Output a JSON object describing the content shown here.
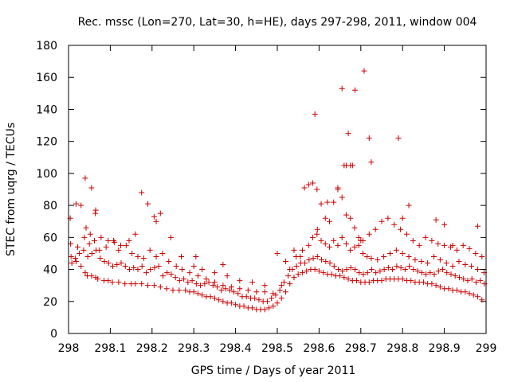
{
  "chart_data": {
    "type": "scatter",
    "title": "Rec. mssc (Lon=270, Lat=30, h=HE), days 297-298, 2011, window 004",
    "xlabel": "GPS time / Days of year 2011",
    "ylabel": "STEC from uqrg / TECUs",
    "xlim": [
      298,
      299
    ],
    "ylim": [
      0,
      180
    ],
    "x_ticks": [
      298,
      298.1,
      298.2,
      298.3,
      298.4,
      298.5,
      298.6,
      298.7,
      298.8,
      298.9,
      299
    ],
    "x_tick_labels": [
      "298",
      "298.1",
      "298.2",
      "298.3",
      "298.4",
      "298.5",
      "298.6",
      "298.7",
      "298.8",
      "298.9",
      "299"
    ],
    "y_ticks": [
      0,
      20,
      40,
      60,
      80,
      100,
      120,
      140,
      160,
      180
    ],
    "y_tick_labels": [
      "0",
      "20",
      "40",
      "60",
      "80",
      "100",
      "120",
      "140",
      "160",
      "180"
    ],
    "grid": false,
    "legend": "none",
    "marker": "plus",
    "color": "#cc0000",
    "series": [
      {
        "x": [
          298.008,
          298.018,
          298.03,
          298.04,
          298.045,
          298.055,
          298.065,
          298.07,
          298.085,
          298.095,
          298.105,
          298.12,
          298.135,
          298.15,
          298.16,
          298.175,
          298.19,
          298.205,
          298.22,
          298.235,
          298.25,
          298.265,
          298.28,
          298.29,
          298.3,
          298.31,
          298.32,
          298.33,
          298.34,
          298.35,
          298.36,
          298.37,
          298.38,
          298.39,
          298.4,
          298.41,
          298.42,
          298.43,
          298.44,
          298.45,
          298.46,
          298.47,
          298.48,
          298.49,
          298.5,
          298.51,
          298.52,
          298.53,
          298.54,
          298.55,
          298.56,
          298.57,
          298.58,
          298.59,
          298.6,
          298.61,
          298.62,
          298.63,
          298.64,
          298.65,
          298.66,
          298.67,
          298.68,
          298.69,
          298.7,
          298.71,
          298.72,
          298.73,
          298.74,
          298.75,
          298.76,
          298.77,
          298.78,
          298.79,
          298.8,
          298.81,
          298.82,
          298.83,
          298.84,
          298.85,
          298.86,
          298.87,
          298.88,
          298.89,
          298.9,
          298.91,
          298.92,
          298.93,
          298.94,
          298.95,
          298.96,
          298.97,
          298.98,
          298.99
        ],
        "y": [
          44,
          45,
          42,
          38,
          36,
          36,
          35,
          34,
          33,
          33,
          32,
          32,
          31,
          31,
          31,
          31,
          30,
          30,
          29,
          28,
          27,
          27,
          27,
          26,
          26,
          25,
          24,
          23,
          23,
          22,
          21,
          20,
          19,
          19,
          18,
          17,
          17,
          16,
          16,
          15,
          15,
          15,
          16,
          17,
          19,
          22,
          26,
          31,
          35,
          37,
          38,
          39,
          40,
          40,
          39,
          38,
          37,
          37,
          36,
          36,
          35,
          34,
          33,
          33,
          32,
          32,
          32,
          33,
          33,
          33,
          34,
          34,
          34,
          34,
          34,
          33,
          33,
          32,
          32,
          32,
          31,
          31,
          30,
          29,
          28,
          28,
          27,
          27,
          26,
          26,
          25,
          24,
          23,
          21
        ]
      },
      {
        "x": [
          298.006,
          298.016,
          298.026,
          298.036,
          298.046,
          298.056,
          298.066,
          298.076,
          298.086,
          298.096,
          298.106,
          298.116,
          298.126,
          298.136,
          298.146,
          298.156,
          298.166,
          298.176,
          298.186,
          298.196,
          298.206,
          298.216,
          298.226,
          298.236,
          298.246,
          298.256,
          298.266,
          298.276,
          298.286,
          298.296,
          298.306,
          298.316,
          298.326,
          298.336,
          298.346,
          298.356,
          298.366,
          298.376,
          298.386,
          298.396,
          298.406,
          298.416,
          298.426,
          298.436,
          298.446,
          298.456,
          298.466,
          298.476,
          298.486,
          298.496,
          298.506,
          298.516,
          298.526,
          298.536,
          298.546,
          298.556,
          298.566,
          298.576,
          298.586,
          298.596,
          298.606,
          298.616,
          298.626,
          298.636,
          298.646,
          298.656,
          298.666,
          298.676,
          298.686,
          298.696,
          298.706,
          298.716,
          298.726,
          298.736,
          298.746,
          298.756,
          298.766,
          298.776,
          298.786,
          298.796,
          298.806,
          298.816,
          298.826,
          298.836,
          298.846,
          298.856,
          298.866,
          298.876,
          298.886,
          298.896,
          298.906,
          298.916,
          298.926,
          298.936,
          298.946,
          298.956,
          298.966,
          298.976,
          298.986,
          298.996
        ],
        "y": [
          48,
          47,
          50,
          52,
          48,
          50,
          52,
          47,
          45,
          44,
          42,
          43,
          44,
          42,
          40,
          41,
          40,
          42,
          38,
          40,
          41,
          42,
          36,
          38,
          37,
          35,
          33,
          34,
          32,
          33,
          31,
          30,
          31,
          32,
          30,
          29,
          27,
          28,
          27,
          26,
          25,
          23,
          23,
          22,
          22,
          21,
          20,
          20,
          22,
          24,
          27,
          32,
          36,
          40,
          42,
          44,
          44,
          46,
          47,
          48,
          46,
          45,
          44,
          42,
          40,
          39,
          40,
          41,
          40,
          38,
          37,
          38,
          40,
          38,
          39,
          40,
          41,
          40,
          42,
          41,
          40,
          42,
          40,
          39,
          38,
          37,
          38,
          37,
          39,
          40,
          38,
          37,
          36,
          35,
          34,
          33,
          34,
          32,
          33,
          31
        ]
      },
      {
        "x": [
          298.005,
          298.022,
          298.038,
          298.05,
          298.062,
          298.074,
          298.09,
          298.108,
          298.12,
          298.138,
          298.152,
          298.166,
          298.18,
          298.195,
          298.21,
          298.225,
          298.24,
          298.258,
          298.272,
          298.29,
          298.31,
          298.33,
          298.35,
          298.37,
          298.39,
          298.41,
          298.43,
          298.45,
          298.47,
          298.49,
          298.51,
          298.53,
          298.545,
          298.56,
          298.575,
          298.585,
          298.595,
          298.605,
          298.615,
          298.625,
          298.635,
          298.645,
          298.655,
          298.665,
          298.675,
          298.685,
          298.695,
          298.705,
          298.715,
          298.725,
          298.74,
          298.755,
          298.77,
          298.785,
          298.8,
          298.815,
          298.83,
          298.845,
          298.86,
          298.875,
          298.89,
          298.905,
          298.92,
          298.935,
          298.95,
          298.965,
          298.98,
          298.995
        ],
        "y": [
          56,
          54,
          60,
          56,
          58,
          52,
          54,
          58,
          52,
          55,
          50,
          48,
          47,
          52,
          48,
          50,
          45,
          42,
          40,
          38,
          36,
          34,
          32,
          30,
          29,
          28,
          27,
          26,
          26,
          25,
          30,
          40,
          48,
          52,
          55,
          60,
          62,
          58,
          56,
          54,
          58,
          55,
          60,
          56,
          52,
          54,
          55,
          50,
          48,
          47,
          46,
          48,
          50,
          52,
          50,
          48,
          46,
          45,
          44,
          48,
          46,
          44,
          42,
          45,
          43,
          42,
          40,
          38
        ]
      },
      {
        "x": [
          298.004,
          298.018,
          298.03,
          298.042,
          298.052,
          298.064,
          298.078,
          298.095,
          298.11,
          298.125,
          298.145,
          298.16,
          298.175,
          298.19,
          298.205,
          298.22,
          298.245,
          298.27,
          298.3,
          298.32,
          298.35,
          298.38,
          298.41,
          298.44,
          298.47,
          298.5,
          298.52,
          298.54,
          298.555,
          298.565,
          298.575,
          298.585,
          298.595,
          298.605,
          298.615,
          298.625,
          298.635,
          298.645,
          298.655,
          298.665,
          298.675,
          298.685,
          298.695,
          298.705,
          298.72,
          298.735,
          298.75,
          298.765,
          298.78,
          298.795,
          298.81,
          298.825,
          298.84,
          298.855,
          298.87,
          298.885,
          298.9,
          298.915,
          298.93,
          298.945,
          298.96,
          298.975,
          298.99
        ],
        "y": [
          72,
          81,
          80,
          66,
          62,
          75,
          60,
          58,
          57,
          55,
          58,
          62,
          88,
          81,
          73,
          75,
          60,
          48,
          42,
          40,
          38,
          36,
          33,
          32,
          30,
          50,
          45,
          52,
          48,
          91,
          93,
          94,
          90,
          81,
          72,
          70,
          82,
          90,
          85,
          74,
          72,
          66,
          60,
          58,
          62,
          65,
          70,
          72,
          68,
          65,
          62,
          58,
          55,
          60,
          58,
          56,
          55,
          54,
          52,
          55,
          53,
          50,
          48
        ]
      },
      {
        "x": [
          298.04,
          298.055,
          298.065,
          298.21,
          298.305,
          298.37,
          298.59,
          298.596,
          298.62,
          298.645,
          298.655,
          298.66,
          298.665,
          298.67,
          298.675,
          298.68,
          298.686,
          298.7,
          298.708,
          298.72,
          298.725,
          298.79,
          298.8,
          298.815,
          298.88,
          298.9,
          298.92,
          298.98
        ],
        "y": [
          97,
          91,
          77,
          70,
          48,
          43,
          137,
          65,
          82,
          91,
          153,
          105,
          105,
          125,
          105,
          105,
          152,
          58,
          164,
          122,
          107,
          122,
          72,
          80,
          71,
          68,
          55,
          67
        ]
      }
    ]
  }
}
